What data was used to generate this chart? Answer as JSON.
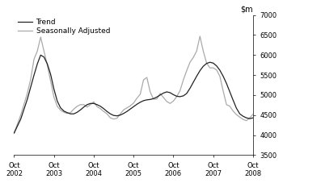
{
  "ylim": [
    3500,
    7000
  ],
  "yticks": [
    3500,
    4000,
    4500,
    5000,
    5500,
    6000,
    6500,
    7000
  ],
  "legend_entries": [
    "Trend",
    "Seasonally Adjusted"
  ],
  "trend_color": "#222222",
  "seasonal_color": "#aaaaaa",
  "trend_linewidth": 0.9,
  "seasonal_linewidth": 0.9,
  "background_color": "#ffffff",
  "xtick_labels": [
    "Oct\n2002",
    "Oct\n2003",
    "Oct\n2004",
    "Oct\n2005",
    "Oct\n2006",
    "Oct\n2007",
    "Oct\n2008"
  ],
  "trend_x": [
    0,
    2,
    4,
    6,
    7,
    8,
    9,
    10,
    11,
    12,
    13,
    14,
    15,
    16,
    17,
    18,
    19,
    20,
    21,
    22,
    23,
    24,
    25,
    26,
    27,
    28,
    29,
    30,
    31,
    32,
    33,
    34,
    35,
    36,
    37,
    38,
    39,
    40,
    41,
    42,
    43,
    44,
    45,
    46,
    47,
    48,
    49,
    50,
    51,
    52,
    53,
    54,
    55,
    56,
    57,
    58,
    59,
    60,
    61,
    62,
    63,
    64,
    65,
    66,
    67,
    68,
    69,
    70,
    71,
    72
  ],
  "trend_y": [
    4050,
    4400,
    4900,
    5500,
    5780,
    6000,
    5950,
    5780,
    5520,
    5150,
    4850,
    4680,
    4600,
    4560,
    4530,
    4530,
    4570,
    4630,
    4700,
    4760,
    4790,
    4790,
    4760,
    4720,
    4660,
    4590,
    4530,
    4490,
    4480,
    4500,
    4540,
    4590,
    4650,
    4710,
    4770,
    4820,
    4860,
    4880,
    4890,
    4910,
    4950,
    5000,
    5050,
    5080,
    5060,
    5010,
    4970,
    4960,
    4980,
    5040,
    5170,
    5320,
    5470,
    5610,
    5720,
    5790,
    5820,
    5800,
    5730,
    5620,
    5470,
    5290,
    5080,
    4870,
    4670,
    4530,
    4470,
    4430,
    4410,
    4430
  ],
  "seasonal_x": [
    0,
    2,
    4,
    5,
    6,
    7,
    8,
    9,
    10,
    11,
    12,
    13,
    14,
    15,
    16,
    17,
    18,
    19,
    20,
    21,
    22,
    23,
    24,
    25,
    26,
    27,
    28,
    29,
    30,
    31,
    32,
    33,
    34,
    35,
    36,
    37,
    38,
    39,
    40,
    41,
    42,
    43,
    44,
    45,
    46,
    47,
    48,
    49,
    50,
    51,
    52,
    53,
    54,
    55,
    56,
    57,
    58,
    59,
    60,
    61,
    62,
    63,
    64,
    65,
    66,
    67,
    68,
    69,
    70,
    71,
    72
  ],
  "seasonal_y": [
    4050,
    4500,
    5050,
    5400,
    5900,
    6100,
    6450,
    6100,
    5750,
    5350,
    4950,
    4720,
    4620,
    4570,
    4540,
    4560,
    4650,
    4720,
    4760,
    4760,
    4700,
    4760,
    4830,
    4710,
    4660,
    4590,
    4530,
    4430,
    4400,
    4420,
    4530,
    4630,
    4680,
    4730,
    4800,
    4920,
    5020,
    5380,
    5440,
    5080,
    4900,
    4900,
    5040,
    4940,
    4840,
    4790,
    4850,
    4960,
    5110,
    5380,
    5610,
    5820,
    5940,
    6100,
    6470,
    6100,
    5800,
    5680,
    5680,
    5630,
    5470,
    5100,
    4760,
    4720,
    4600,
    4510,
    4450,
    4390,
    4360,
    4430,
    4520
  ]
}
